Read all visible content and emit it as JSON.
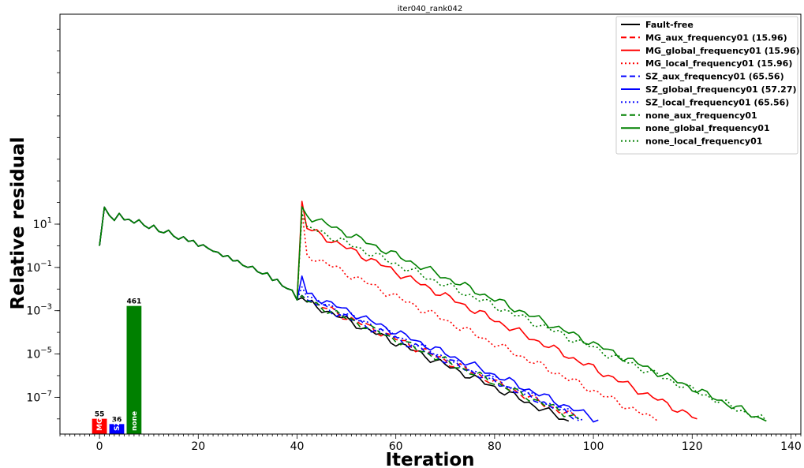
{
  "chart_data": {
    "type": "line",
    "title": "iter040_rank042",
    "xlabel": "Iteration",
    "ylabel": "Relative residual",
    "yscale": "log",
    "xlim": [
      -8,
      142
    ],
    "ylim_log10": [
      -8.7,
      10.7
    ],
    "xticks": [
      0,
      20,
      40,
      60,
      80,
      100,
      120,
      140
    ],
    "yticks": [
      {
        "base": "10",
        "exp": "1",
        "value_log10": 1
      },
      {
        "base": "10",
        "exp": "−1",
        "value_log10": -1
      },
      {
        "base": "10",
        "exp": "−3",
        "value_log10": -3
      },
      {
        "base": "10",
        "exp": "−5",
        "value_log10": -5
      },
      {
        "base": "10",
        "exp": "−7",
        "value_log10": -7
      }
    ],
    "legend_position": "top-right",
    "common_start": [
      [
        0,
        0.0
      ],
      [
        1,
        1.78
      ],
      [
        2,
        1.4
      ],
      [
        3,
        1.17
      ],
      [
        4,
        1.5
      ],
      [
        5,
        1.2
      ],
      [
        6,
        1.22
      ],
      [
        7,
        1.05
      ],
      [
        8,
        1.2
      ],
      [
        9,
        0.95
      ],
      [
        10,
        0.8
      ],
      [
        11,
        0.95
      ],
      [
        12,
        0.66
      ],
      [
        13,
        0.6
      ],
      [
        14,
        0.72
      ],
      [
        15,
        0.45
      ],
      [
        16,
        0.3
      ],
      [
        17,
        0.42
      ],
      [
        18,
        0.2
      ],
      [
        19,
        0.25
      ],
      [
        20,
        -0.02
      ],
      [
        21,
        0.05
      ],
      [
        22,
        -0.12
      ],
      [
        23,
        -0.25
      ],
      [
        24,
        -0.3
      ],
      [
        25,
        -0.5
      ],
      [
        26,
        -0.45
      ],
      [
        27,
        -0.7
      ],
      [
        28,
        -0.68
      ],
      [
        29,
        -0.9
      ],
      [
        30,
        -1.0
      ],
      [
        31,
        -0.95
      ],
      [
        32,
        -1.2
      ],
      [
        33,
        -1.3
      ],
      [
        34,
        -1.25
      ],
      [
        35,
        -1.6
      ],
      [
        36,
        -1.55
      ],
      [
        37,
        -1.85
      ],
      [
        38,
        -1.98
      ],
      [
        39,
        -2.05
      ],
      [
        40,
        -2.5
      ]
    ],
    "series": [
      {
        "name": "Fault-free",
        "color": "#000000",
        "dash": "solid",
        "end_x": 95,
        "end_y": -8.1,
        "jump_y": -2.5,
        "peak_x": 41,
        "peak_y": -2.4,
        "settle_y": -2.6
      },
      {
        "name": "MG_aux_frequency01 (15.96)",
        "color": "#ff0000",
        "dash": "dashed",
        "end_x": 97,
        "end_y": -8.0,
        "jump_y": -2.3,
        "peak_x": 41,
        "peak_y": -2.3,
        "settle_y": -2.5
      },
      {
        "name": "MG_global_frequency01 (15.96)",
        "color": "#ff0000",
        "dash": "solid",
        "end_x": 121,
        "end_y": -8.0,
        "jump_y": 2.05,
        "peak_x": 41,
        "peak_y": 2.05,
        "settle_y": 0.8
      },
      {
        "name": "MG_local_frequency01 (15.96)",
        "color": "#ff0000",
        "dash": "dotted",
        "end_x": 113,
        "end_y": -8.1,
        "jump_y": 1.6,
        "peak_x": 41,
        "peak_y": 1.6,
        "settle_y": -0.4
      },
      {
        "name": "SZ_aux_frequency01 (65.56)",
        "color": "#0000ff",
        "dash": "dashed",
        "end_x": 97,
        "end_y": -7.95,
        "jump_y": -2.3,
        "peak_x": 41,
        "peak_y": -2.3,
        "settle_y": -2.5
      },
      {
        "name": "SZ_global_frequency01 (57.27)",
        "color": "#0000ff",
        "dash": "solid",
        "end_x": 101,
        "end_y": -8.05,
        "jump_y": -1.4,
        "peak_x": 41,
        "peak_y": -1.4,
        "settle_y": -2.2
      },
      {
        "name": "SZ_local_frequency01 (65.56)",
        "color": "#0000ff",
        "dash": "dotted",
        "end_x": 98,
        "end_y": -8.0,
        "jump_y": -1.9,
        "peak_x": 41,
        "peak_y": -1.9,
        "settle_y": -2.35
      },
      {
        "name": "none_aux_frequency01",
        "color": "#008000",
        "dash": "dashed",
        "end_x": 97,
        "end_y": -8.0,
        "jump_y": -2.3,
        "peak_x": 41,
        "peak_y": -2.3,
        "settle_y": -2.55
      },
      {
        "name": "none_global_frequency01",
        "color": "#008000",
        "dash": "solid",
        "end_x": 135,
        "end_y": -8.1,
        "jump_y": 1.8,
        "peak_x": 41,
        "peak_y": 1.8,
        "settle_y": 1.4
      },
      {
        "name": "none_local_frequency01",
        "color": "#008000",
        "dash": "dotted",
        "end_x": 135,
        "end_y": -8.1,
        "jump_y": 1.5,
        "peak_x": 41,
        "peak_y": 1.5,
        "settle_y": 0.9
      }
    ],
    "bars": [
      {
        "label": "MG",
        "value": 55,
        "color": "#ff0000",
        "x": 0
      },
      {
        "label": "SZ",
        "value": 36,
        "color": "#0000ff",
        "x": 3.5
      },
      {
        "label": "none",
        "value": 461,
        "color": "#008000",
        "x": 7
      }
    ]
  }
}
